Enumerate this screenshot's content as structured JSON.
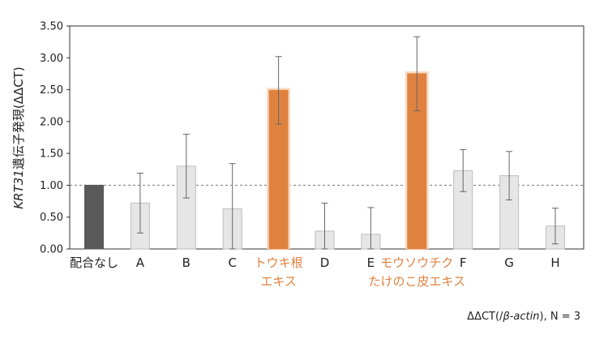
{
  "chart_data": {
    "type": "bar",
    "ylabel_gene": "KRT31",
    "ylabel_rest": "遺伝子発現(ΔΔCT)",
    "ylim": [
      0,
      3.5
    ],
    "yticks": [
      "0.00",
      "0.50",
      "1.00",
      "1.50",
      "2.00",
      "2.50",
      "3.00",
      "3.50"
    ],
    "reference_line": 1.0,
    "categories": [
      [
        "配合なし"
      ],
      [
        "A"
      ],
      [
        "B"
      ],
      [
        "C"
      ],
      [
        "トウキ根",
        "エキス"
      ],
      [
        "D"
      ],
      [
        "E"
      ],
      [
        "モウソウチク",
        "たけのこ皮エキス"
      ],
      [
        "F"
      ],
      [
        "G"
      ],
      [
        "H"
      ]
    ],
    "values": [
      1.0,
      0.72,
      1.3,
      0.63,
      2.49,
      0.28,
      0.23,
      2.75,
      1.23,
      1.15,
      0.36
    ],
    "errors": [
      0,
      0.47,
      0.5,
      0.71,
      0.53,
      0.44,
      0.42,
      0.58,
      0.33,
      0.38,
      0.28
    ],
    "bar_kinds": [
      "control",
      "test",
      "test",
      "test",
      "highlight",
      "test",
      "test",
      "highlight",
      "test",
      "test",
      "test"
    ],
    "grid": false
  },
  "colors": {
    "control": "#595959",
    "test": "#e6e6e6",
    "highlight": "#e0823f",
    "highlight_glow": "#f8dcc6",
    "highlight_text": "#e0823f",
    "axis": "#333333"
  },
  "footnote": {
    "prefix": "ΔΔCT(/",
    "italic": "β-actin",
    "suffix": "), N = 3"
  }
}
